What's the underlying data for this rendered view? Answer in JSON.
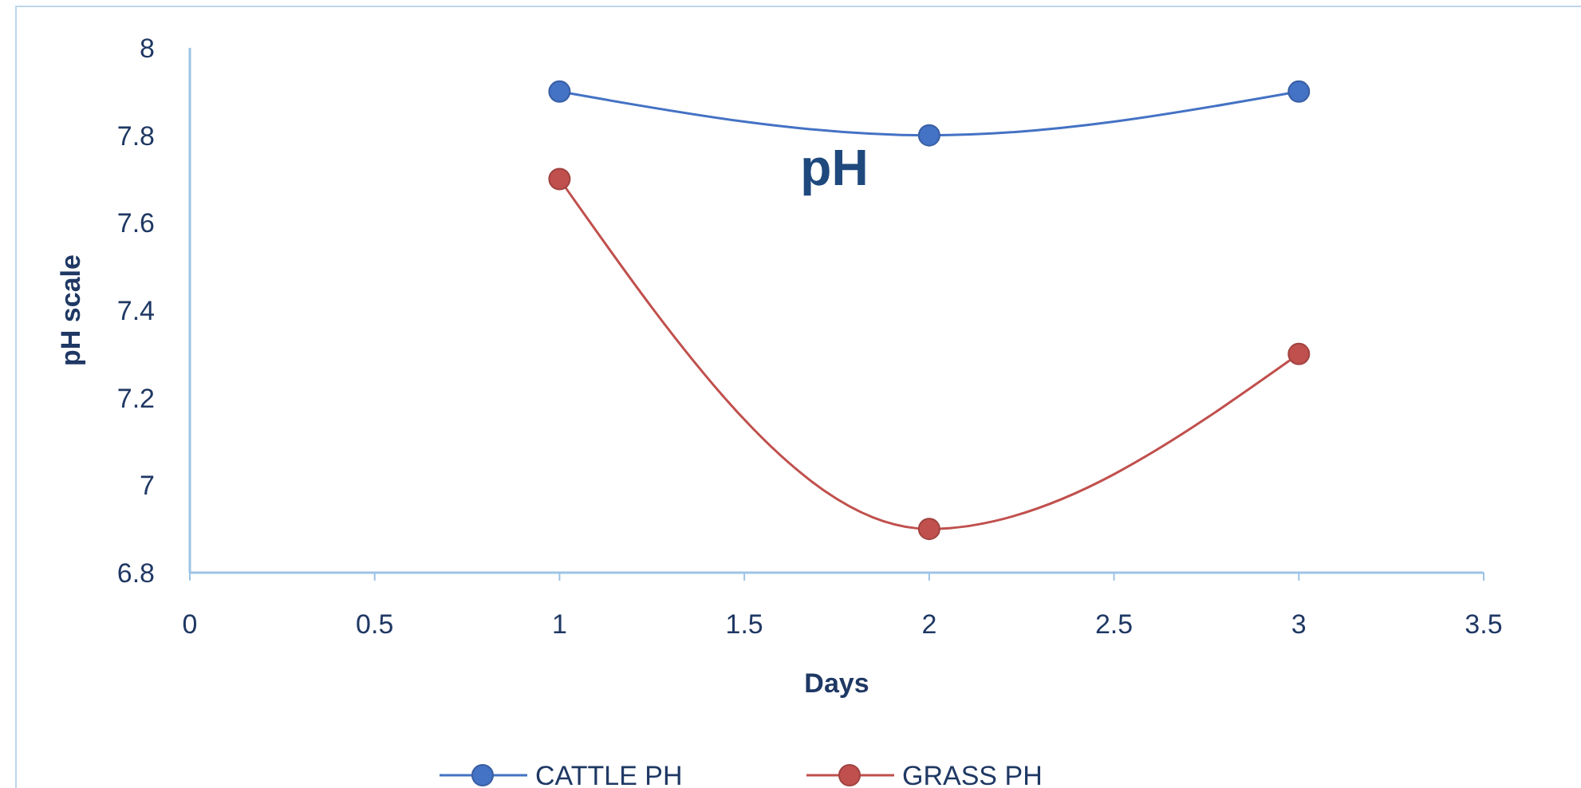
{
  "chart_data": {
    "type": "line",
    "title": "pH",
    "xlabel": "Days",
    "ylabel": "pH scale",
    "x": [
      1,
      2,
      3
    ],
    "series": [
      {
        "name": "CATTLE PH",
        "color": "#4472c4",
        "values": [
          7.9,
          7.8,
          7.9
        ]
      },
      {
        "name": "GRASS PH",
        "color": "#c0504d",
        "values": [
          7.7,
          6.9,
          7.3
        ]
      }
    ],
    "xlim": [
      0,
      3.5
    ],
    "xticks": [
      0,
      0.5,
      1,
      1.5,
      2,
      2.5,
      3,
      3.5
    ],
    "ylim": [
      6.8,
      8
    ],
    "yticks": [
      6.8,
      7,
      7.2,
      7.4,
      7.6,
      7.8,
      8
    ],
    "grid": false,
    "legend": "bottom",
    "marker": "circle",
    "line_style": "solid"
  }
}
